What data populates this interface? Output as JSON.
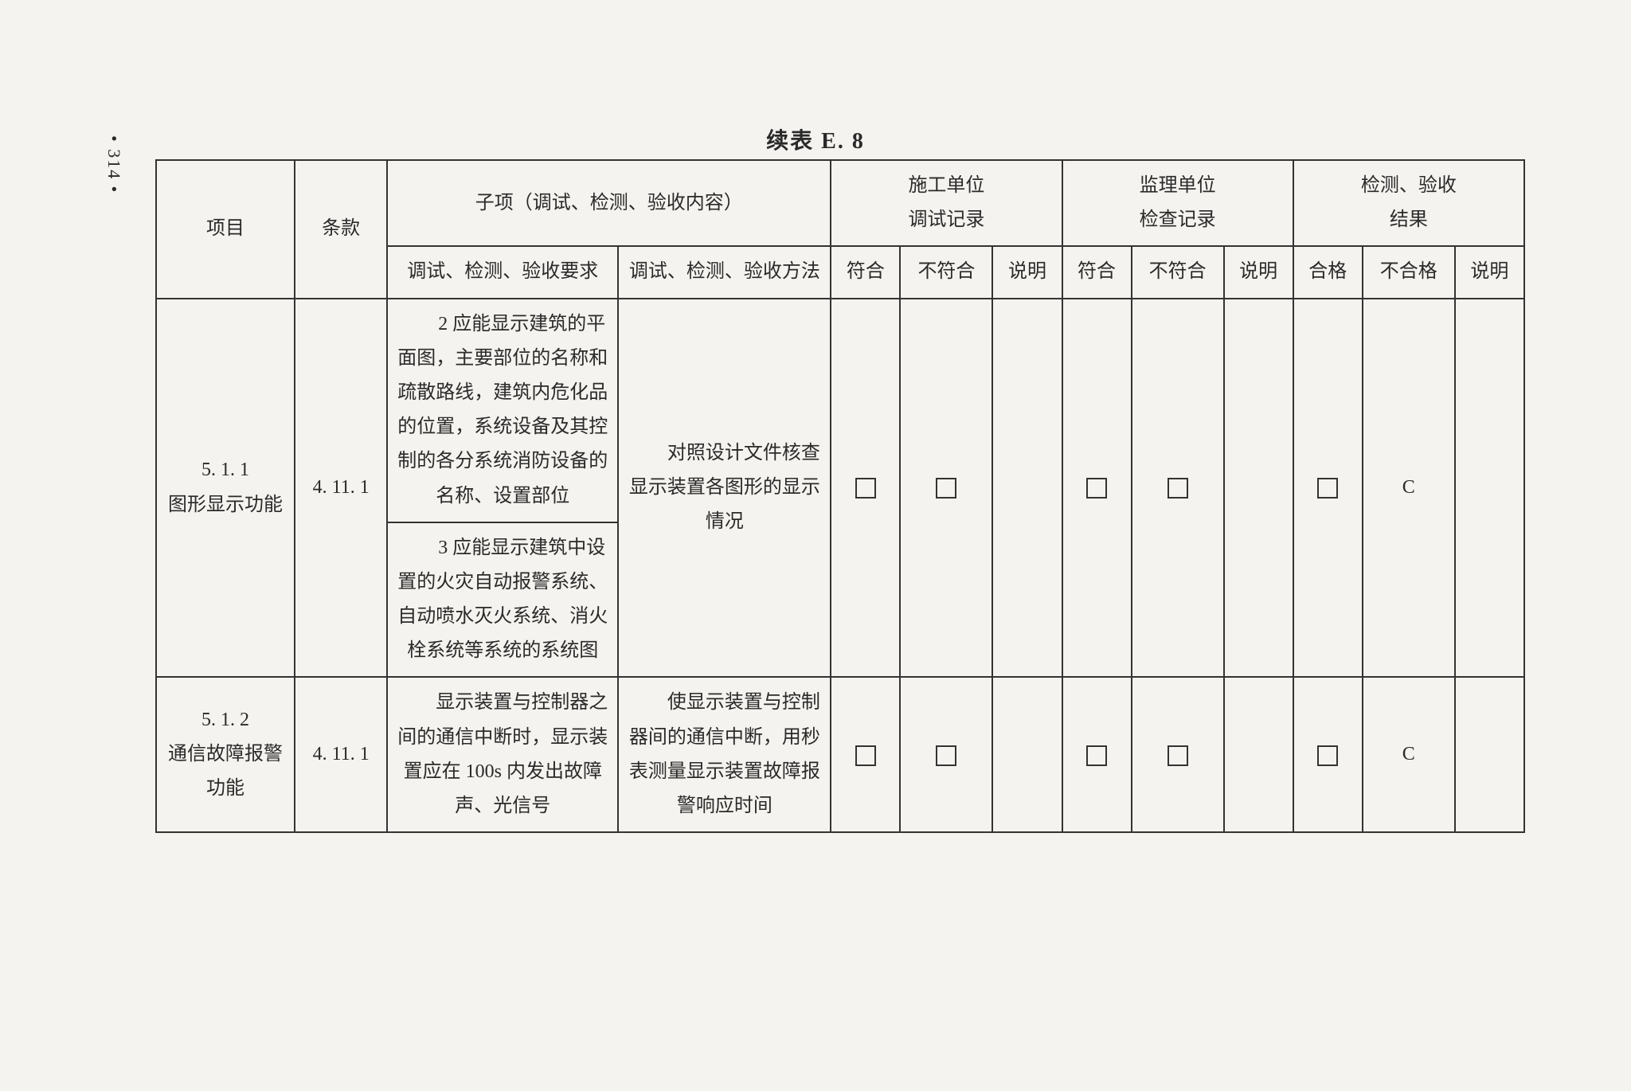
{
  "pageNumber": "314",
  "tableTitle": "续表 E. 8",
  "headers": {
    "project": "项目",
    "clause": "条款",
    "subitem": "子项（调试、检测、验收内容）",
    "construction": "施工单位",
    "constructionSub": "调试记录",
    "supervision": "监理单位",
    "supervisionSub": "检查记录",
    "inspection": "检测、验收",
    "inspectionSub": "结果",
    "requirement": "调试、检测、验收要求",
    "method": "调试、检测、验收方法",
    "conform": "符合",
    "nonconform": "不符合",
    "note": "说明",
    "pass": "合格",
    "fail": "不合格"
  },
  "rows": [
    {
      "project": "5. 1. 1\n图形显示功能",
      "clause": "4. 11. 1",
      "requirement1": "2 应能显示建筑的平面图，主要部位的名称和疏散路线，建筑内危化品的位置，系统设备及其控制的各分系统消防设备的名称、设置部位",
      "requirement2": "3 应能显示建筑中设置的火灾自动报警系统、自动喷水灭火系统、消火栓系统等系统的系统图",
      "method": "对照设计文件核查显示装置各图形的显示情况",
      "resultGrade": "C"
    },
    {
      "project": "5. 1. 2\n通信故障报警\n功能",
      "clause": "4. 11. 1",
      "requirement": "显示装置与控制器之间的通信中断时，显示装置应在 100s 内发出故障声、光信号",
      "method": "使显示装置与控制器间的通信中断，用秒表测量显示装置故障报警响应时间",
      "resultGrade": "C"
    }
  ],
  "styling": {
    "backgroundColor": "#f5f3ef",
    "borderColor": "#333333",
    "textColor": "#2a2a2a",
    "fontFamily": "SimSun",
    "baseFontSize": 24,
    "titleFontSize": 28,
    "borderWidth": 2,
    "tableWidth": 1720,
    "tableLeft": 195,
    "tableTop": 200,
    "checkboxSize": 26
  }
}
